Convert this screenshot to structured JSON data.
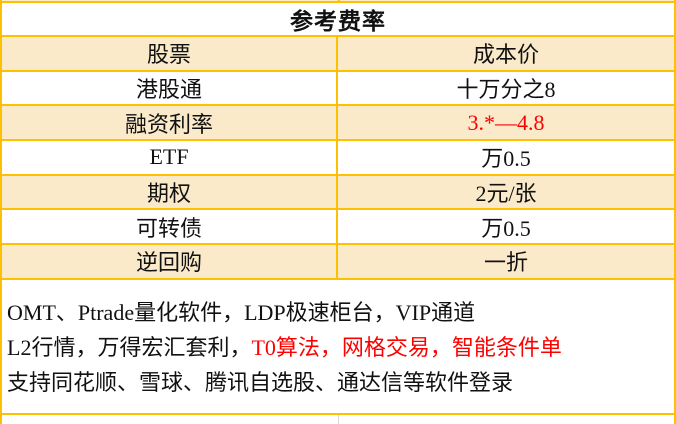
{
  "title": "参考费率",
  "colors": {
    "table_border": "#FFC000",
    "row_fill": "#FAEACA",
    "highlight_red": "#FE0000",
    "text": "#111111"
  },
  "table": {
    "rows": [
      {
        "label": "股票",
        "value": "成本价"
      },
      {
        "label": "港股通",
        "value": "十万分之8"
      },
      {
        "label": "融资利率",
        "value": "3.*—4.8",
        "value_color": "#FE0000"
      },
      {
        "label": "ETF",
        "value": "万0.5"
      },
      {
        "label": "期权",
        "value": "2元/张"
      },
      {
        "label": "可转债",
        "value": "万0.5"
      },
      {
        "label": "逆回购",
        "value": "一折"
      }
    ]
  },
  "notes": {
    "line1": "OMT、Ptrade量化软件，LDP极速柜台，VIP通道",
    "line2_black": "L2行情，万得宏汇套利，",
    "line2_red": "T0算法，网格交易，智能条件单",
    "line3": "支持同花顺、雪球、腾讯自选股、通达信等软件登录"
  }
}
